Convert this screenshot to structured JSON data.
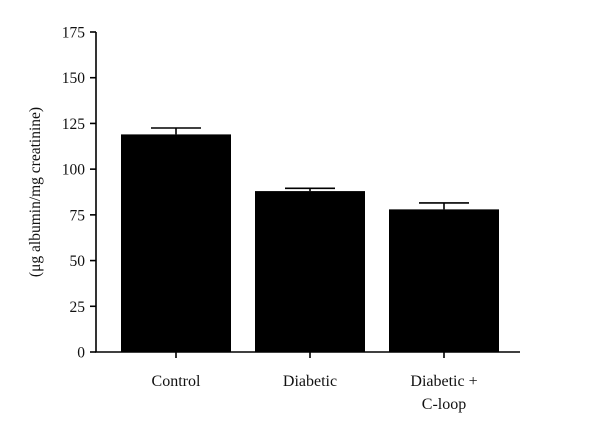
{
  "chart_data": {
    "type": "bar",
    "title": "",
    "xlabel": "",
    "ylabel": "(μg albumin/mg creatinine)",
    "ylim": [
      0,
      175
    ],
    "yticks": [
      0,
      25,
      50,
      75,
      100,
      125,
      150,
      175
    ],
    "categories": [
      [
        "Control"
      ],
      [
        "Diabetic"
      ],
      [
        "Diabetic +",
        "C-loop"
      ]
    ],
    "values": [
      119,
      88,
      78
    ],
    "errors": [
      3.5,
      1.5,
      3.5
    ],
    "bar_color": "#000000",
    "axis_color": "#000000",
    "grid": false,
    "error_bars": "upper"
  }
}
